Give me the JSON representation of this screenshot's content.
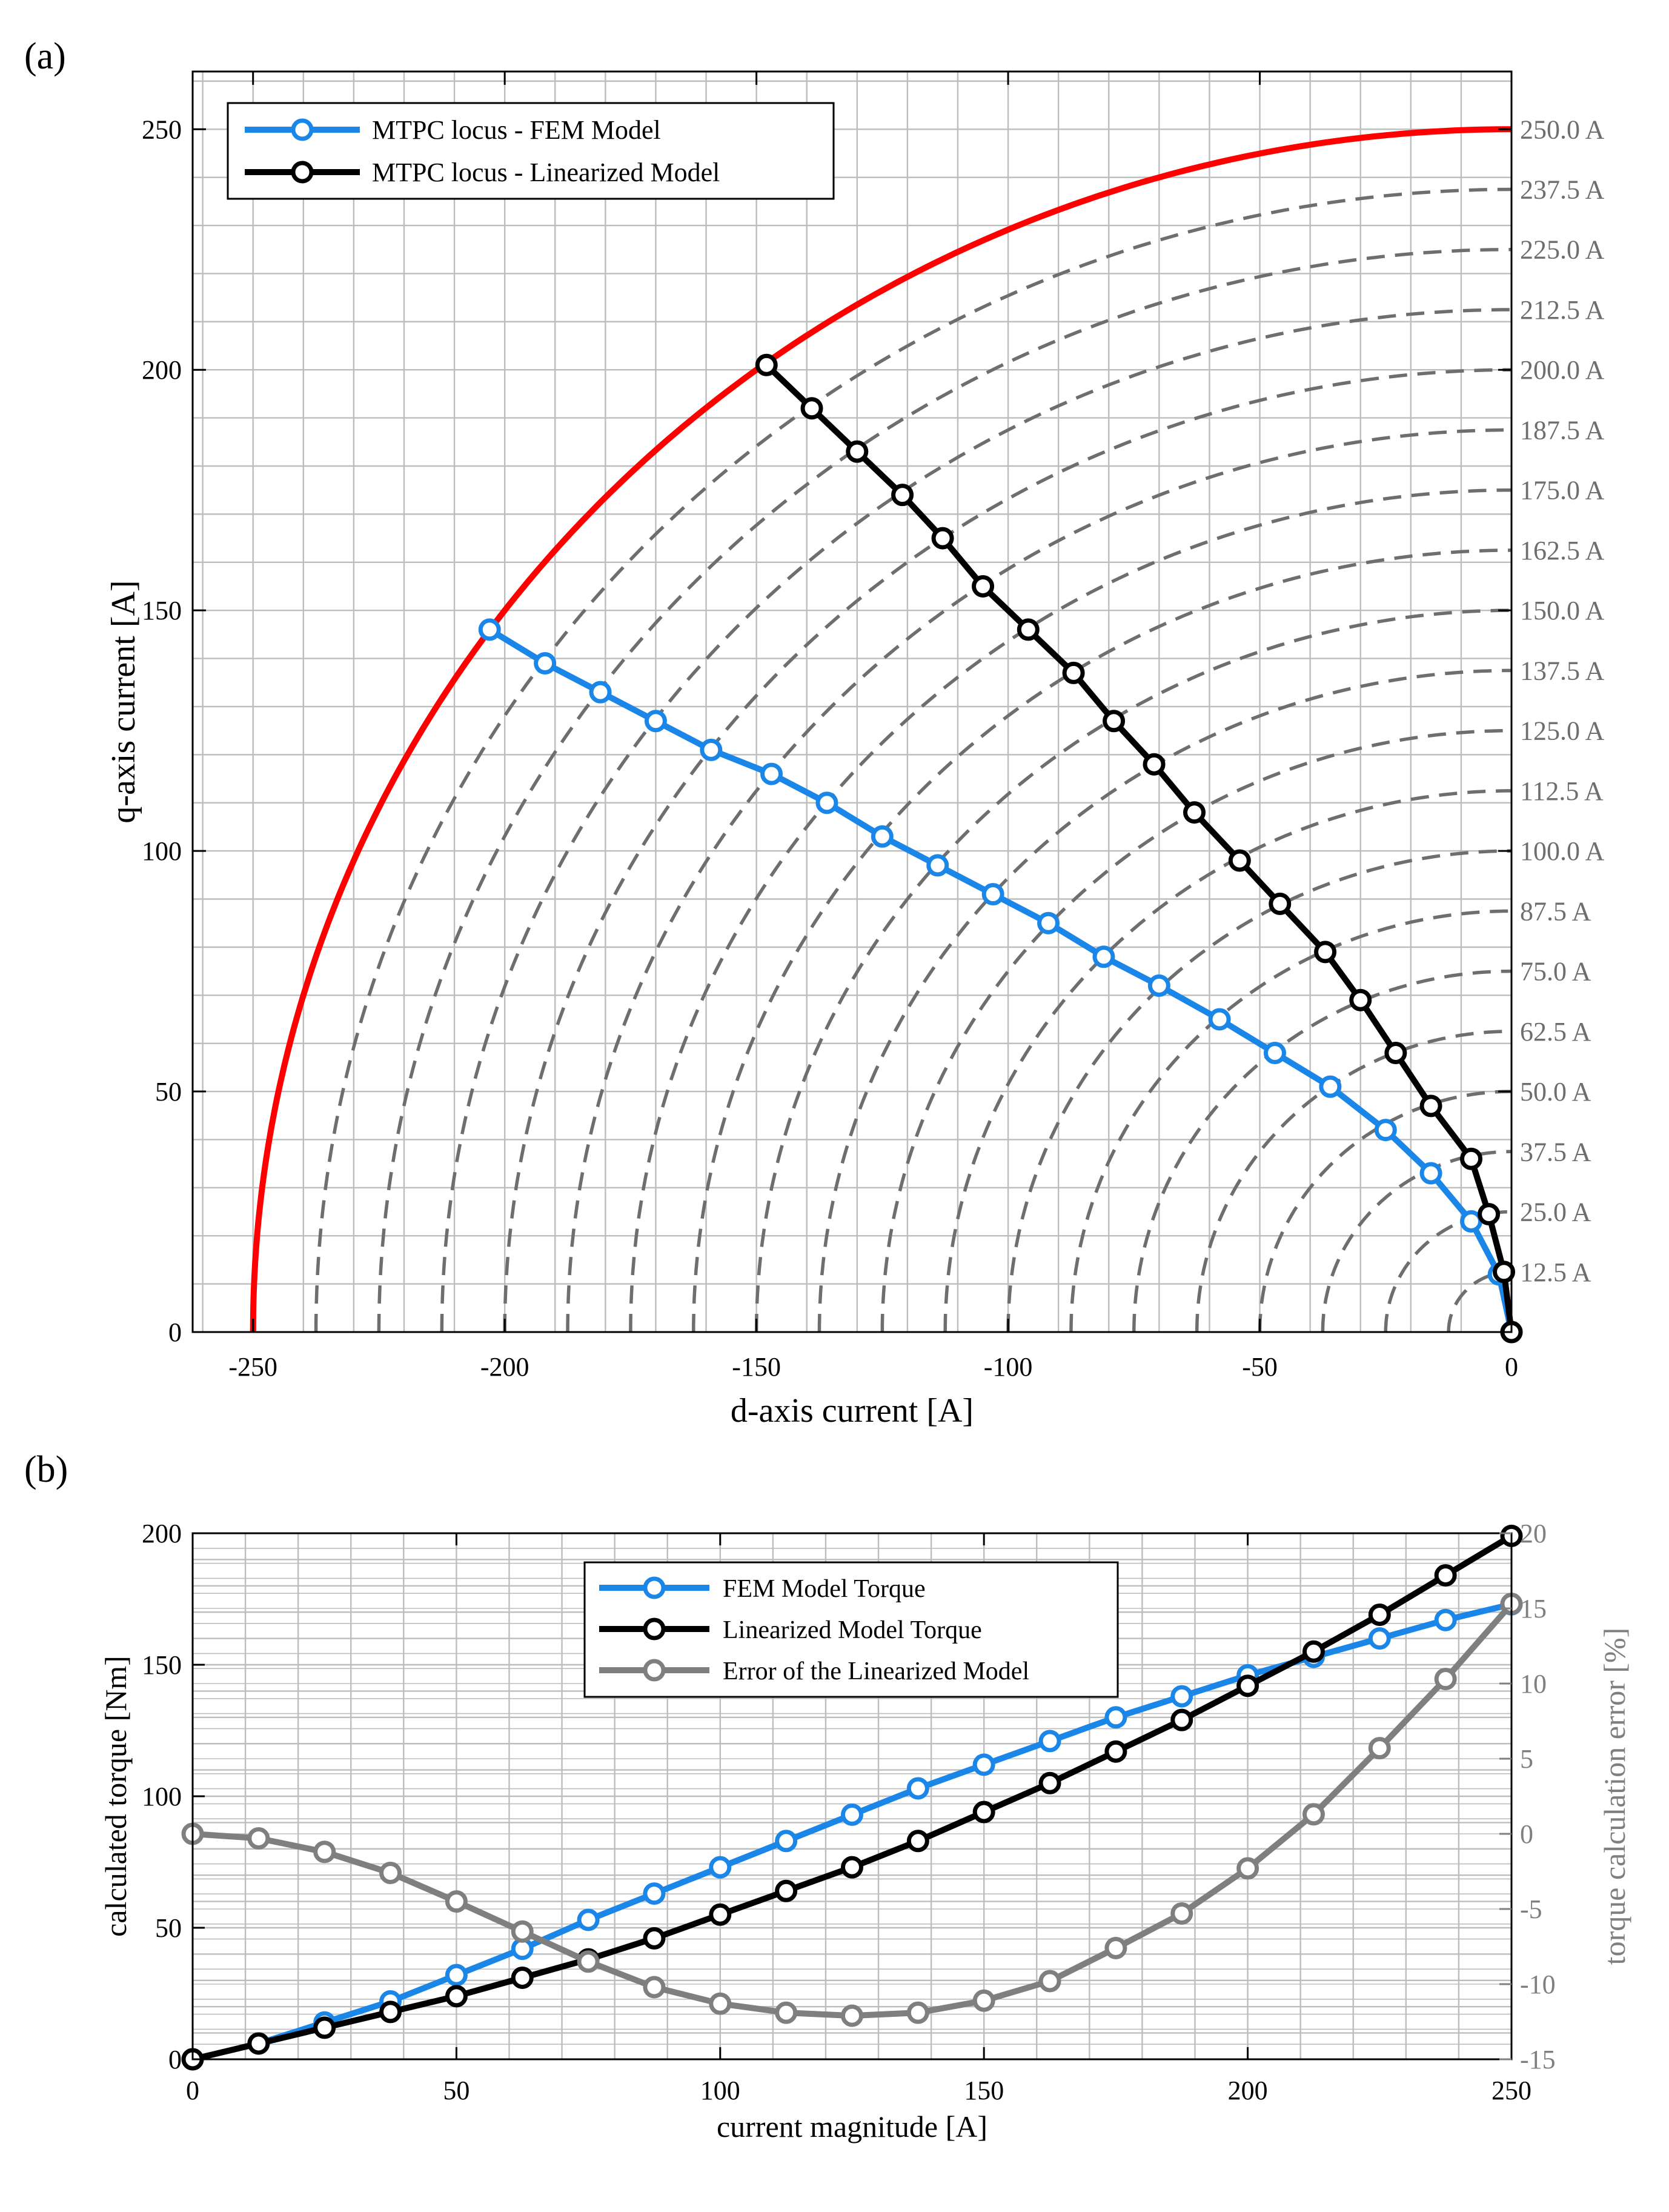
{
  "panel_labels": {
    "a": "(a)",
    "b": "(b)"
  },
  "colors": {
    "fem": "#1a86e8",
    "linear": "#000000",
    "error": "#7f7f7f",
    "limit_circle": "#ff0000",
    "contours": "#6e6e6e",
    "grid": "#bdbdbd",
    "secondary_axis": "#7f7f7f"
  },
  "chart_data": [
    {
      "id": "a",
      "type": "line",
      "title": "",
      "xlabel": "d-axis current [A]",
      "ylabel": "q-axis current [A]",
      "xlim": [
        -262,
        0
      ],
      "ylim": [
        0,
        262
      ],
      "xticks": [
        -250,
        -200,
        -150,
        -100,
        -50,
        0
      ],
      "yticks": [
        0,
        50,
        100,
        150,
        200,
        250
      ],
      "xtick_labels": [
        "-250",
        "-200",
        "-150",
        "-100",
        "-50",
        "0"
      ],
      "ytick_labels": [
        "0",
        "50",
        "100",
        "150",
        "200",
        "250"
      ],
      "grid": true,
      "legend_position": "top-left",
      "current_circles": {
        "radii": [
          12.5,
          25,
          37.5,
          50,
          62.5,
          75,
          87.5,
          100,
          112.5,
          125,
          137.5,
          150,
          162.5,
          175,
          187.5,
          200,
          212.5,
          225,
          237.5,
          250
        ],
        "labels": [
          "12.5 A",
          "25.0 A",
          "37.5 A",
          "50.0 A",
          "62.5 A",
          "75.0 A",
          "87.5 A",
          "100.0 A",
          "112.5 A",
          "125.0 A",
          "137.5 A",
          "150.0 A",
          "162.5 A",
          "175.0 A",
          "187.5 A",
          "200.0 A",
          "212.5 A",
          "225.0 A",
          "237.5 A",
          "250.0 A"
        ],
        "limit_radius": 250
      },
      "series": [
        {
          "name": "MTPC locus - FEM Model",
          "color_key": "fem",
          "x": [
            0,
            -2.5,
            -8,
            -16,
            -25,
            -36,
            -47,
            -58,
            -70,
            -81,
            -92,
            -103,
            -114,
            -125,
            -136,
            -147,
            -159,
            -170,
            -181,
            -192,
            -203
          ],
          "y": [
            0,
            12,
            23,
            33,
            42,
            51,
            58,
            65,
            72,
            78,
            85,
            91,
            97,
            103,
            110,
            116,
            121,
            127,
            133,
            139,
            146
          ]
        },
        {
          "name": "MTPC locus - Linearized Model",
          "color_key": "linear",
          "x": [
            0,
            -1.5,
            -4.5,
            -8,
            -16,
            -23,
            -30,
            -37,
            -46,
            -54,
            -63,
            -71,
            -79,
            -87,
            -96,
            -105,
            -113,
            -121,
            -130,
            -139,
            -148
          ],
          "y": [
            0,
            12.5,
            24.5,
            36,
            47,
            58,
            69,
            79,
            89,
            98,
            108,
            118,
            127,
            137,
            146,
            155,
            165,
            174,
            183,
            192,
            201
          ]
        }
      ]
    },
    {
      "id": "b",
      "type": "line",
      "title": "",
      "xlabel": "current magnitude [A]",
      "ylabel": "calculated torque [Nm]",
      "y2label": "torque calculation error [%]",
      "xlim": [
        0,
        250
      ],
      "ylim": [
        0,
        200
      ],
      "y2lim": [
        -15,
        20
      ],
      "xticks": [
        0,
        50,
        100,
        150,
        200,
        250
      ],
      "yticks": [
        0,
        50,
        100,
        150,
        200
      ],
      "y2ticks": [
        -15,
        -10,
        -5,
        0,
        5,
        10,
        15,
        20
      ],
      "xtick_labels": [
        "0",
        "50",
        "100",
        "150",
        "200",
        "250"
      ],
      "ytick_labels": [
        "0",
        "50",
        "100",
        "150",
        "200"
      ],
      "y2tick_labels": [
        "-15",
        "-10",
        "-5",
        "0",
        "5",
        "10",
        "15",
        "20"
      ],
      "grid": true,
      "legend_position": "top-center",
      "series": [
        {
          "name": "FEM Model Torque",
          "color_key": "fem",
          "axis": "left",
          "x": [
            0,
            12.5,
            25,
            37.5,
            50,
            62.5,
            75,
            87.5,
            100,
            112.5,
            125,
            137.5,
            150,
            162.5,
            175,
            187.5,
            200,
            212.5,
            225,
            237.5,
            250
          ],
          "y": [
            0,
            6,
            14,
            22,
            32,
            42,
            53,
            63,
            73,
            83,
            93,
            103,
            112,
            121,
            130,
            138,
            146,
            153,
            160,
            167,
            173
          ]
        },
        {
          "name": "Linearized Model Torque",
          "color_key": "linear",
          "axis": "left",
          "x": [
            0,
            12.5,
            25,
            37.5,
            50,
            62.5,
            75,
            87.5,
            100,
            112.5,
            125,
            137.5,
            150,
            162.5,
            175,
            187.5,
            200,
            212.5,
            225,
            237.5,
            250
          ],
          "y": [
            0,
            6,
            12,
            18,
            24,
            31,
            38,
            46,
            55,
            64,
            73,
            83,
            94,
            105,
            117,
            129,
            142,
            155,
            169,
            184,
            199
          ]
        },
        {
          "name": "Error of the Linearized Model",
          "color_key": "error",
          "axis": "right",
          "x": [
            0,
            12.5,
            25,
            37.5,
            50,
            62.5,
            75,
            87.5,
            100,
            112.5,
            125,
            137.5,
            150,
            162.5,
            175,
            187.5,
            200,
            212.5,
            225,
            237.5,
            250
          ],
          "y": [
            0,
            -0.3,
            -1.2,
            -2.6,
            -4.5,
            -6.5,
            -8.5,
            -10.2,
            -11.3,
            -11.9,
            -12.1,
            -11.9,
            -11.1,
            -9.8,
            -7.6,
            -5.3,
            -2.3,
            1.3,
            5.7,
            10.3,
            15.3
          ]
        }
      ]
    }
  ]
}
